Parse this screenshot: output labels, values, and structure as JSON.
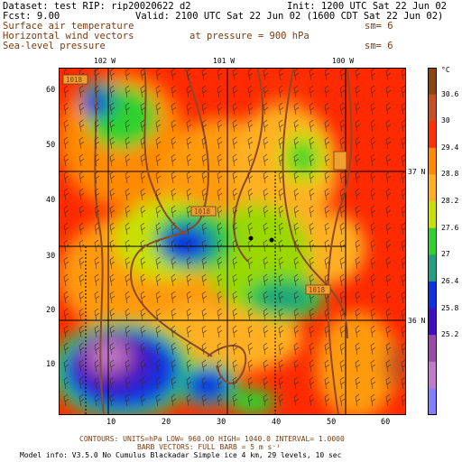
{
  "header": {
    "dataset": "Dataset: test  RIP: rip20020622 d2",
    "init": "Init: 1200 UTC Sat 22 Jun 02",
    "fcst": "Fcst:    9.00",
    "valid": "Valid: 2100 UTC Sat 22 Jun 02 (1600 CDT Sat 22 Jun 02)",
    "field1": "Surface air temperature",
    "field1_sm": "sm= 6",
    "field2": "Horizontal wind vectors",
    "field2_pressure": "at pressure =  900 hPa",
    "field3": "Sea-level pressure",
    "field3_sm": "sm= 6"
  },
  "x_ticks": [
    "10",
    "20",
    "30",
    "40",
    "50",
    "60"
  ],
  "y_ticks": [
    "10",
    "20",
    "30",
    "40",
    "50",
    "60"
  ],
  "lon_labels": [
    "102 W",
    "101 W",
    "100 W"
  ],
  "lat_labels": [
    "37 N",
    "36 N"
  ],
  "legend": {
    "unit": "°C",
    "labels": [
      "30.6",
      "30",
      "29.4",
      "28.8",
      "28.2",
      "27.6",
      "27",
      "26.4",
      "25.8",
      "25.2"
    ],
    "colors": [
      "#8b4513",
      "#c8501e",
      "#ff3000",
      "#ff8a00",
      "#ffb020",
      "#c8e000",
      "#2ed12e",
      "#20a080",
      "#1030e0",
      "#4010c0",
      "#9a4aa8",
      "#c07ac8",
      "#8080ff"
    ]
  },
  "isobar_labels": [
    "1018",
    "1018",
    "1018",
    "1018"
  ],
  "footer": {
    "line1": "CONTOURS: UNITS=hPa  LOW= 960.00   HIGH= 1040.0   INTERVAL= 1.0000",
    "line2": "BARB VECTORS:  FULL BARB = 5 m s⁻¹",
    "line3": "Model info: V3.5.0 No Cumulus Blackadar  Simple ice    4 km,  29 levels,   10 sec"
  }
}
